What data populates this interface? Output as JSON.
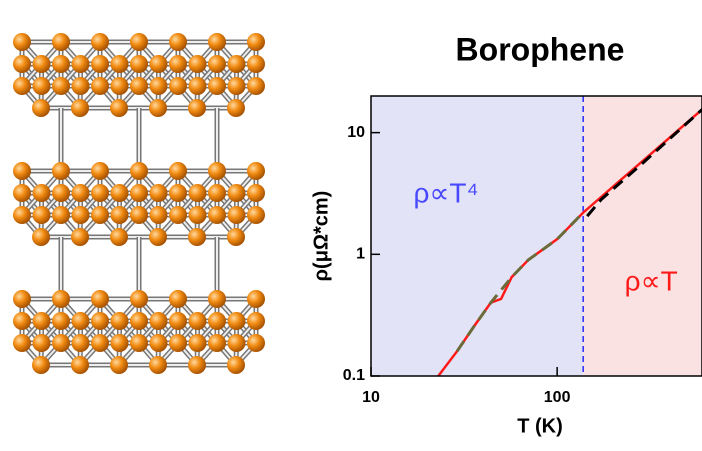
{
  "chart_data": {
    "type": "line",
    "title": "Borophene",
    "x_label": "T (K)",
    "y_label": "ρ(μΩ*cm)",
    "xscale": "log",
    "yscale": "log",
    "xlim": [
      10,
      600
    ],
    "ylim": [
      0.1,
      20
    ],
    "xticks": [
      10,
      100
    ],
    "yticks": [
      0.1,
      1,
      10
    ],
    "vline": 138,
    "vline_color": "#2b2bff",
    "regions": [
      {
        "color": "#e3e3f8"
      },
      {
        "color": "#fbe2e2"
      }
    ],
    "annotations": [
      {
        "text": "ρ∝T⁴",
        "color": "#4848ff"
      },
      {
        "text": "ρ∝T",
        "color": "#ff1a1a"
      }
    ],
    "series": [
      {
        "color": "#ff1a1a",
        "dashed": false,
        "x": [
          23,
          29,
          36,
          44,
          50,
          57,
          70,
          84,
          100,
          138,
          222,
          365,
          615
        ],
        "values": [
          0.1,
          0.16,
          0.26,
          0.4,
          0.43,
          0.65,
          0.9,
          1.1,
          1.33,
          2.2,
          4.14,
          8.0,
          16
        ]
      },
      {
        "color": "#6b6b3a",
        "dashed": true,
        "x": [
          29,
          36,
          44,
          57,
          70,
          84,
          100,
          138
        ],
        "values": [
          0.16,
          0.26,
          0.4,
          0.65,
          0.9,
          1.1,
          1.33,
          2.2
        ]
      },
      {
        "color": "#000000",
        "dashed": true,
        "x": [
          145,
          173,
          284,
          615
        ],
        "values": [
          2.06,
          2.84,
          5.5,
          16
        ]
      }
    ]
  }
}
